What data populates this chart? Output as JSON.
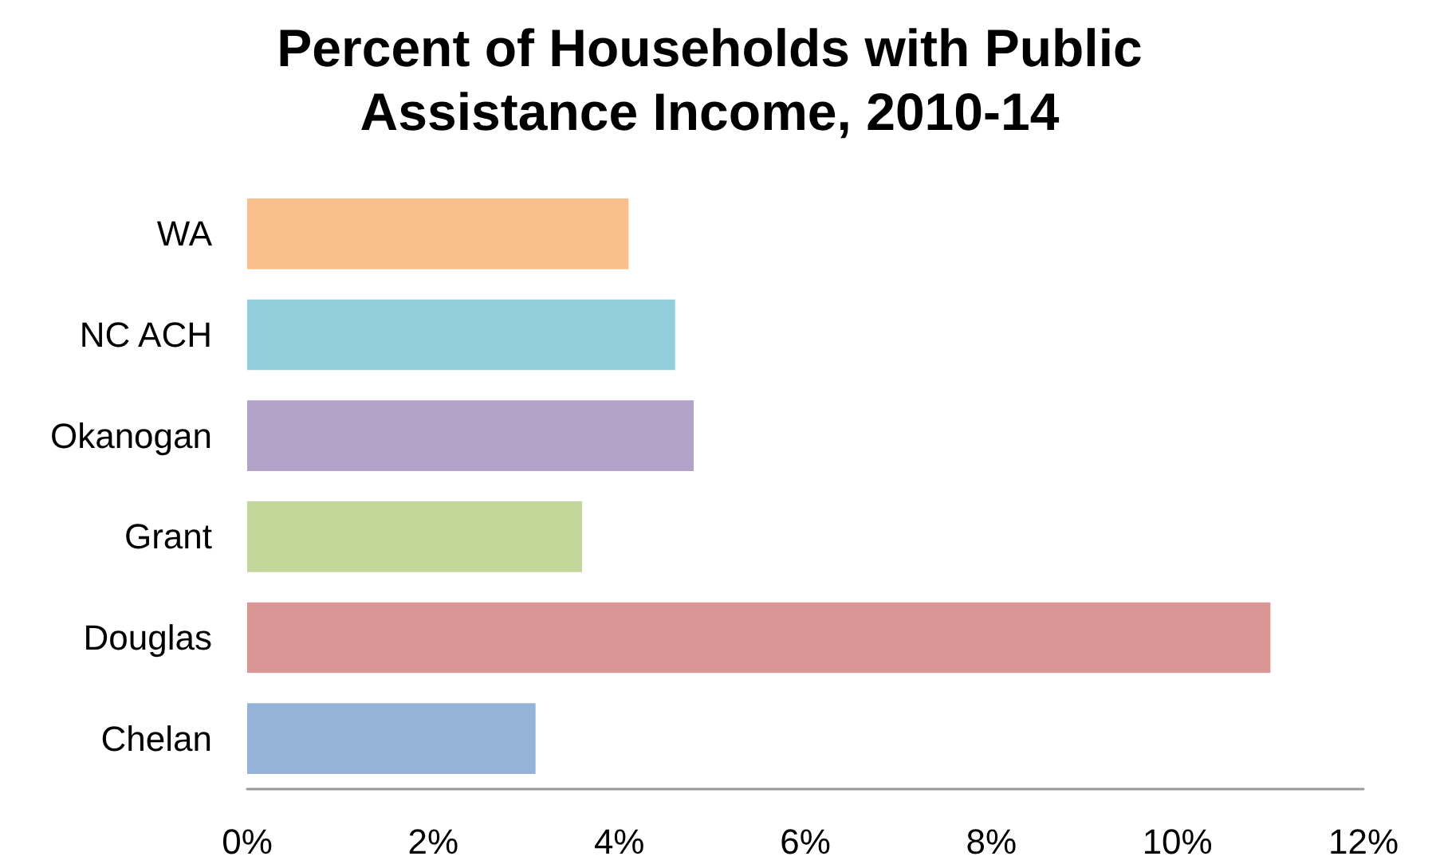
{
  "chart_data": {
    "type": "bar",
    "orientation": "horizontal",
    "title": "Percent of Households with Public\nAssistance Income, 2010-14",
    "categories": [
      "WA",
      "NC ACH",
      "Okanogan",
      "Grant",
      "Douglas",
      "Chelan"
    ],
    "values": [
      4.1,
      4.6,
      4.8,
      3.6,
      11.0,
      3.1
    ],
    "colors": [
      "#f9c08e",
      "#92cddc",
      "#b2a2c7",
      "#c4d79b",
      "#d99694",
      "#95b3d7"
    ],
    "xlim": [
      0,
      12
    ],
    "xticks": [
      {
        "value": 0,
        "label": "0%"
      },
      {
        "value": 2,
        "label": "2%"
      },
      {
        "value": 4,
        "label": "4%"
      },
      {
        "value": 6,
        "label": "6%"
      },
      {
        "value": 8,
        "label": "8%"
      },
      {
        "value": 10,
        "label": "10%"
      },
      {
        "value": 12,
        "label": "12%"
      }
    ],
    "grid": false
  }
}
